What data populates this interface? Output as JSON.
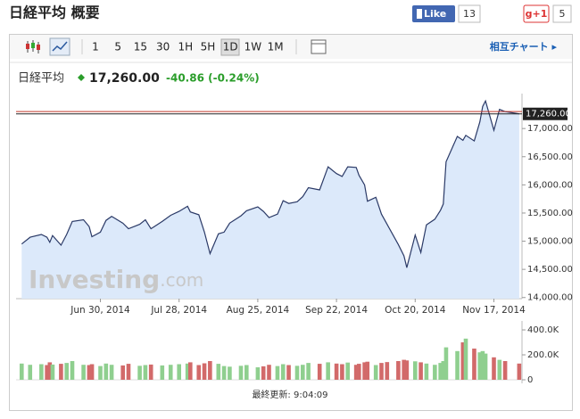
{
  "header": {
    "title": "日経平均 概要",
    "like": "Like",
    "like_count": "13",
    "plus": "g+1",
    "plus_count": "5"
  },
  "toolbar": {
    "timeframes": [
      "1",
      "5",
      "15",
      "30",
      "1H",
      "5H",
      "1D",
      "1W",
      "1M"
    ],
    "link": "相互チャート ▸"
  },
  "quote": {
    "name": "日経平均",
    "price": "17,260.00",
    "change": "-40.86 (-0.24%)"
  },
  "watermark": {
    "brand": "Investing",
    "suffix": ".com"
  },
  "footer": "最終更新: 9:04:09",
  "chart_data": {
    "type": "area",
    "color": "#2b3a67",
    "fill": "#dce9fa",
    "x": [
      "2014-06-02",
      "2014-06-05",
      "2014-06-09",
      "2014-06-11",
      "2014-06-12",
      "2014-06-13",
      "2014-06-16",
      "2014-06-18",
      "2014-06-20",
      "2014-06-24",
      "2014-06-26",
      "2014-06-27",
      "2014-06-30",
      "2014-07-02",
      "2014-07-04",
      "2014-07-08",
      "2014-07-10",
      "2014-07-14",
      "2014-07-16",
      "2014-07-18",
      "2014-07-22",
      "2014-07-25",
      "2014-07-28",
      "2014-07-31",
      "2014-08-01",
      "2014-08-04",
      "2014-08-06",
      "2014-08-08",
      "2014-08-11",
      "2014-08-13",
      "2014-08-15",
      "2014-08-19",
      "2014-08-21",
      "2014-08-25",
      "2014-08-27",
      "2014-08-29",
      "2014-09-01",
      "2014-09-03",
      "2014-09-05",
      "2014-09-08",
      "2014-09-10",
      "2014-09-12",
      "2014-09-16",
      "2014-09-19",
      "2014-09-22",
      "2014-09-24",
      "2014-09-26",
      "2014-09-29",
      "2014-09-30",
      "2014-10-02",
      "2014-10-03",
      "2014-10-06",
      "2014-10-08",
      "2014-10-10",
      "2014-10-14",
      "2014-10-16",
      "2014-10-17",
      "2014-10-20",
      "2014-10-22",
      "2014-10-24",
      "2014-10-27",
      "2014-10-29",
      "2014-10-30",
      "2014-10-31",
      "2014-11-04",
      "2014-11-06",
      "2014-11-07",
      "2014-11-10",
      "2014-11-12",
      "2014-11-13",
      "2014-11-14",
      "2014-11-17",
      "2014-11-19",
      "2014-11-21",
      "2014-11-26"
    ],
    "values": [
      14950,
      15070,
      15120,
      15070,
      14980,
      15100,
      14930,
      15120,
      15350,
      15380,
      15260,
      15080,
      15160,
      15370,
      15440,
      15320,
      15220,
      15300,
      15380,
      15220,
      15350,
      15460,
      15530,
      15620,
      15520,
      15470,
      15160,
      14780,
      15130,
      15160,
      15320,
      15450,
      15540,
      15610,
      15530,
      15420,
      15480,
      15720,
      15670,
      15700,
      15790,
      15950,
      15910,
      16320,
      16200,
      16150,
      16320,
      16310,
      16170,
      16000,
      15710,
      15780,
      15480,
      15300,
      14940,
      14740,
      14530,
      15110,
      14800,
      15290,
      15390,
      15550,
      15660,
      16410,
      16860,
      16790,
      16880,
      16780,
      17120,
      17390,
      17490,
      16970,
      17340,
      17300,
      17260
    ],
    "xlim": [
      "2014-05-31",
      "2014-11-27"
    ],
    "xticks": [
      {
        "value": "2014-06-30",
        "label": "Jun 30, 2014"
      },
      {
        "value": "2014-07-28",
        "label": "Jul 28, 2014"
      },
      {
        "value": "2014-08-25",
        "label": "Aug 25, 2014"
      },
      {
        "value": "2014-09-22",
        "label": "Sep 22, 2014"
      },
      {
        "value": "2014-10-20",
        "label": "Oct 20, 2014"
      },
      {
        "value": "2014-11-17",
        "label": "Nov 17, 2014"
      }
    ],
    "ylim": [
      13980,
      17620
    ],
    "yticks": [
      {
        "value": 14000,
        "label": "14,000.00"
      },
      {
        "value": 14500,
        "label": "14,500.00"
      },
      {
        "value": 15000,
        "label": "15,000.00"
      },
      {
        "value": 15500,
        "label": "15,500.00"
      },
      {
        "value": 16000,
        "label": "16,000.00"
      },
      {
        "value": 16500,
        "label": "16,500.00"
      },
      {
        "value": 17000,
        "label": "17,000.00"
      }
    ],
    "reference_lines": [
      {
        "value": 17300.86,
        "color": "#c0392b"
      },
      {
        "value": 17260,
        "label": "17,260.00",
        "color": "#222222"
      }
    ],
    "volume": {
      "type": "bar",
      "up_color": "#8fcf8f",
      "down_color": "#d26a6a",
      "values": [
        130000,
        120000,
        125000,
        118000,
        140000,
        122000,
        128000,
        135000,
        150000,
        120000,
        118000,
        125000,
        110000,
        130000,
        120000,
        115000,
        128000,
        112000,
        118000,
        122000,
        115000,
        120000,
        125000,
        130000,
        140000,
        118000,
        132000,
        150000,
        128000,
        110000,
        105000,
        112000,
        118000,
        100000,
        108000,
        120000,
        110000,
        125000,
        118000,
        112000,
        120000,
        135000,
        128000,
        140000,
        130000,
        125000,
        138000,
        120000,
        128000,
        140000,
        145000,
        118000,
        135000,
        142000,
        150000,
        160000,
        155000,
        148000,
        140000,
        130000,
        120000,
        135000,
        150000,
        260000,
        230000,
        300000,
        330000,
        250000,
        220000,
        230000,
        210000,
        180000,
        160000,
        150000,
        130000
      ],
      "ylim": [
        0,
        436000
      ],
      "yticks": [
        0,
        {
          "value": 200000,
          "label": "200.0K"
        },
        {
          "value": 400000,
          "label": "400.0K"
        }
      ]
    }
  }
}
